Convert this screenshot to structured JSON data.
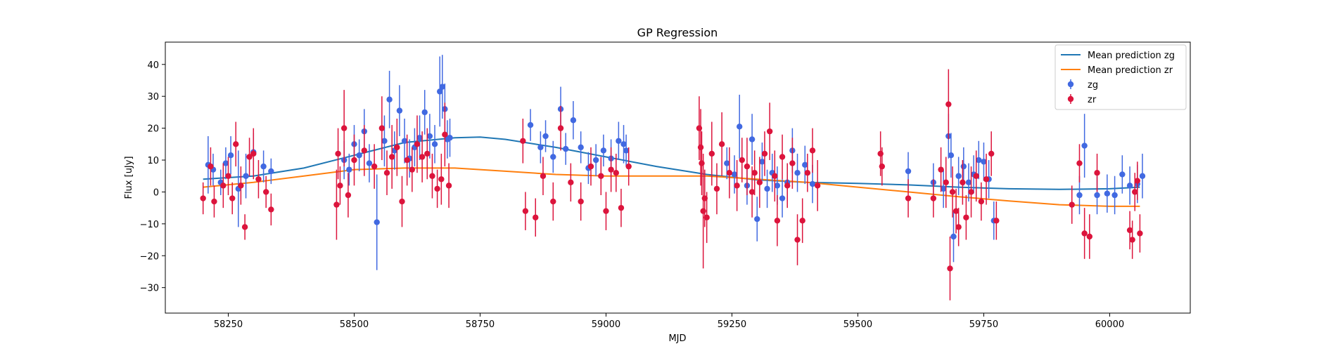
{
  "chart_data": {
    "type": "scatter",
    "title": "GP Regression",
    "xlabel": "MJD",
    "ylabel": "Flux [uJy]",
    "xlim": [
      58125,
      60160
    ],
    "ylim": [
      -38,
      47
    ],
    "xticks": [
      58250,
      58500,
      58750,
      59000,
      59250,
      59500,
      59750,
      60000
    ],
    "yticks": [
      -30,
      -20,
      -10,
      0,
      10,
      20,
      30,
      40
    ],
    "grid": false,
    "legend_position": "top-right",
    "legend": [
      {
        "label": "Mean prediction zg",
        "kind": "line",
        "color": "#1f77b4"
      },
      {
        "label": "Mean prediction zr",
        "kind": "line",
        "color": "#ff7f0e"
      },
      {
        "label": "zg",
        "kind": "errorbar",
        "color": "#4169e1"
      },
      {
        "label": "zr",
        "kind": "errorbar",
        "color": "#dc143c"
      }
    ],
    "lines": [
      {
        "name": "Mean prediction zg",
        "color": "#1f77b4",
        "x": [
          58200,
          58300,
          58400,
          58500,
          58600,
          58700,
          58750,
          58800,
          58900,
          59000,
          59100,
          59200,
          59300,
          59400,
          59500,
          59600,
          59700,
          59800,
          59900,
          60000,
          60060
        ],
        "y": [
          4,
          5,
          7.5,
          11.5,
          15.5,
          17,
          17.2,
          16.5,
          14,
          11,
          8,
          5.5,
          3.8,
          3,
          2.7,
          2.2,
          1.5,
          1,
          0.8,
          1,
          1.5
        ]
      },
      {
        "name": "Mean prediction zr",
        "color": "#ff7f0e",
        "x": [
          58200,
          58300,
          58400,
          58500,
          58600,
          58700,
          58800,
          58900,
          59000,
          59100,
          59200,
          59300,
          59400,
          59500,
          59600,
          59700,
          59800,
          59900,
          60000,
          60060
        ],
        "y": [
          1.5,
          3,
          5,
          7,
          7.5,
          7.5,
          6.5,
          5.5,
          5,
          5,
          5,
          4,
          3,
          1.5,
          0,
          -1.5,
          -2.8,
          -4,
          -4.5,
          -4.5
        ]
      }
    ],
    "series": [
      {
        "name": "zg",
        "color": "#4169e1",
        "x": [
          58210,
          58220,
          58235,
          58245,
          58255,
          58270,
          58285,
          58300,
          58320,
          58335,
          58480,
          58490,
          58500,
          58510,
          58520,
          58530,
          58545,
          58560,
          58570,
          58580,
          58590,
          58600,
          58610,
          58620,
          58630,
          58640,
          58650,
          58660,
          58670,
          58675,
          58680,
          58685,
          58690,
          58850,
          58870,
          58880,
          58895,
          58910,
          58920,
          58935,
          58950,
          58965,
          58980,
          58995,
          59010,
          59025,
          59035,
          59040,
          59240,
          59255,
          59265,
          59280,
          59290,
          59300,
          59310,
          59320,
          59330,
          59340,
          59350,
          59360,
          59370,
          59380,
          59395,
          59410,
          59600,
          59650,
          59670,
          59680,
          59685,
          59690,
          59700,
          59710,
          59720,
          59730,
          59740,
          59750,
          59760,
          59770,
          59940,
          59950,
          59975,
          59995,
          60010,
          60025,
          60040,
          60055,
          60065
        ],
        "y": [
          8.5,
          7,
          3,
          9,
          11.5,
          1,
          5,
          12.5,
          8,
          6.5,
          10,
          7,
          15,
          11.5,
          19,
          9,
          -9.5,
          16,
          29,
          13,
          25.5,
          16,
          10.5,
          14,
          17,
          25,
          17.5,
          15,
          31.5,
          33,
          26,
          16.5,
          17,
          21,
          14,
          17.5,
          11,
          26,
          13.5,
          22.5,
          14,
          7.5,
          10,
          13,
          10.5,
          16,
          15,
          13,
          9,
          5.5,
          20.5,
          2,
          16.5,
          -8.5,
          9.5,
          1,
          6,
          2,
          -2,
          3,
          13,
          6,
          8.5,
          2.5,
          6.5,
          3,
          1,
          17.5,
          11.5,
          -14,
          5,
          8,
          3,
          5.5,
          10,
          9.5,
          4,
          -9,
          -1,
          14.5,
          -1,
          -0.5,
          -1,
          5.5,
          2,
          2.5,
          5
        ],
        "yerr": [
          9,
          5,
          4,
          5,
          6,
          12,
          7,
          6,
          5,
          4,
          6,
          5,
          6,
          5,
          7,
          6,
          15,
          8,
          9,
          6,
          8,
          7,
          6,
          6,
          7,
          7,
          7,
          6,
          11,
          10,
          8,
          6,
          6,
          5,
          5,
          5,
          5,
          7,
          5,
          6,
          5,
          5,
          5,
          5,
          6,
          6,
          6,
          5,
          5,
          6,
          10,
          6,
          8,
          7,
          6,
          6,
          6,
          6,
          6,
          6,
          7,
          6,
          6,
          6,
          6,
          6,
          6,
          7,
          7,
          8,
          6,
          6,
          6,
          6,
          6,
          6,
          6,
          6,
          6,
          10,
          6,
          6,
          6,
          6,
          6,
          6,
          7
        ]
      },
      {
        "name": "zr",
        "color": "#dc143c",
        "x": [
          58200,
          58215,
          58222,
          58240,
          58250,
          58258,
          58265,
          58275,
          58283,
          58292,
          58300,
          58310,
          58325,
          58335,
          58465,
          58468,
          58472,
          58480,
          58488,
          58500,
          58520,
          58540,
          58555,
          58565,
          58575,
          58585,
          58595,
          58605,
          58615,
          58625,
          58635,
          58645,
          58655,
          58665,
          58673,
          58680,
          58688,
          58835,
          58840,
          58860,
          58875,
          58895,
          58910,
          58930,
          58950,
          58970,
          58990,
          59000,
          59010,
          59020,
          59030,
          59045,
          59185,
          59188,
          59190,
          59193,
          59196,
          59200,
          59210,
          59220,
          59230,
          59245,
          59260,
          59270,
          59280,
          59290,
          59295,
          59305,
          59315,
          59325,
          59335,
          59340,
          59350,
          59360,
          59370,
          59380,
          59390,
          59400,
          59410,
          59420,
          59545,
          59548,
          59600,
          59650,
          59665,
          59675,
          59680,
          59683,
          59688,
          59695,
          59700,
          59708,
          59715,
          59725,
          59735,
          59745,
          59755,
          59765,
          59775,
          59925,
          59940,
          59950,
          59960,
          59975,
          60040,
          60045,
          60050,
          60055,
          60060
        ],
        "y": [
          -2,
          8,
          -3,
          2,
          5,
          -2,
          15,
          2,
          -11,
          11,
          12,
          4,
          0,
          -5.5,
          -4,
          12,
          2,
          20,
          -1,
          10,
          13,
          8,
          20,
          6,
          11,
          14,
          -3,
          10,
          7,
          15,
          11,
          12,
          5,
          1,
          4,
          18,
          2,
          16,
          -6,
          -8,
          5,
          -3,
          20,
          3,
          -3,
          8,
          5,
          -6,
          7,
          6,
          -5,
          8,
          20,
          14,
          9,
          -6,
          -2,
          -8,
          12,
          1,
          15,
          6,
          2,
          10,
          8,
          0,
          6,
          3,
          12,
          19,
          5,
          -9,
          11,
          2,
          9,
          -15,
          -9,
          6,
          13,
          2,
          12,
          8,
          -2,
          -2,
          7,
          3,
          27.5,
          -24,
          0,
          -6,
          -11,
          3,
          -8,
          0,
          5,
          -3,
          4,
          12,
          -9,
          -4,
          9,
          -13,
          -14,
          6,
          -12,
          -15,
          0,
          3.5,
          -13
        ],
        "yerr": [
          5,
          6,
          5,
          7,
          6,
          5,
          7,
          6,
          4,
          6,
          8,
          6,
          5,
          5,
          11,
          8,
          6,
          12,
          7,
          8,
          8,
          7,
          10,
          7,
          10,
          9,
          8,
          8,
          7,
          9,
          8,
          8,
          7,
          6,
          8,
          10,
          7,
          7,
          6,
          6,
          6,
          6,
          7,
          6,
          6,
          6,
          6,
          6,
          7,
          6,
          6,
          6,
          10,
          12,
          10,
          18,
          9,
          8,
          10,
          8,
          10,
          8,
          8,
          7,
          9,
          8,
          7,
          8,
          7,
          9,
          8,
          8,
          7,
          7,
          8,
          8,
          7,
          6,
          7,
          8,
          7,
          6,
          6,
          6,
          7,
          8,
          11,
          10,
          8,
          7,
          6,
          7,
          7,
          8,
          8,
          6,
          8,
          7,
          6,
          6,
          6,
          8,
          7,
          6,
          6,
          6,
          6,
          6,
          6
        ]
      }
    ]
  }
}
